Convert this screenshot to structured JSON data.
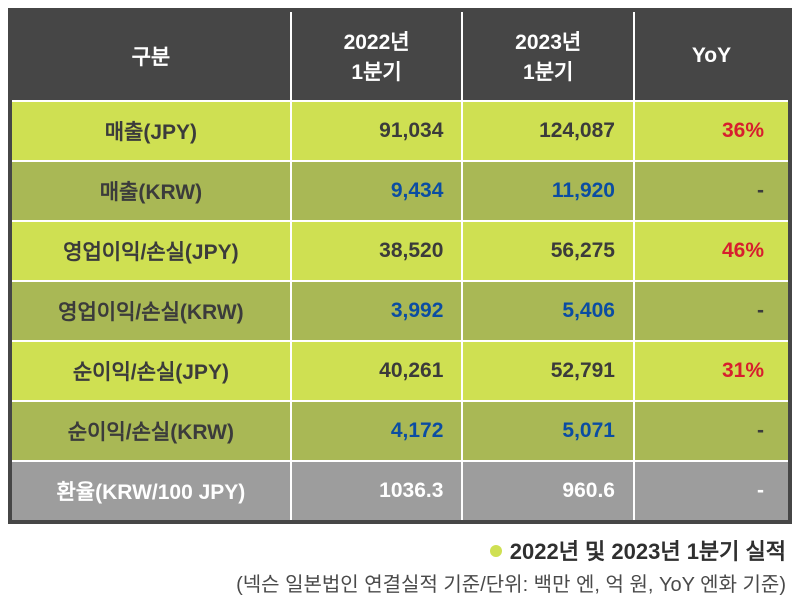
{
  "colors": {
    "header_bg": "#464646",
    "header_text": "#ffffff",
    "row_lime": "#cfe052",
    "row_olive": "#a9b855",
    "row_gray": "#9d9d9d",
    "text_dark": "#3b3b3b",
    "text_blue": "#0b4da2",
    "text_red": "#d71f2e",
    "border": "#ffffff",
    "bullet": "#cfe052"
  },
  "typography": {
    "header_fontsize_pt": 16,
    "cell_fontsize_pt": 16,
    "caption_title_fontsize_pt": 17,
    "caption_sub_fontsize_pt": 15,
    "font_weight": 700
  },
  "table": {
    "type": "table",
    "columns": [
      {
        "label": "구분",
        "align": "center",
        "width_pct": 36
      },
      {
        "label": "2022년\n1분기",
        "align": "right",
        "width_pct": 22
      },
      {
        "label": "2023년\n1분기",
        "align": "right",
        "width_pct": 22
      },
      {
        "label": "YoY",
        "align": "right",
        "width_pct": 20
      }
    ],
    "rows": [
      {
        "label": "매출(JPY)",
        "v2022": "91,034",
        "v2023": "124,087",
        "yoy": "36%",
        "row_bg": "lime",
        "value_color": "dark",
        "yoy_color": "red"
      },
      {
        "label": "매출(KRW)",
        "v2022": "9,434",
        "v2023": "11,920",
        "yoy": "-",
        "row_bg": "olive",
        "value_color": "blue",
        "yoy_color": "dark"
      },
      {
        "label": "영업이익/손실(JPY)",
        "v2022": "38,520",
        "v2023": "56,275",
        "yoy": "46%",
        "row_bg": "lime",
        "value_color": "dark",
        "yoy_color": "red"
      },
      {
        "label": "영업이익/손실(KRW)",
        "v2022": "3,992",
        "v2023": "5,406",
        "yoy": "-",
        "row_bg": "olive",
        "value_color": "blue",
        "yoy_color": "dark"
      },
      {
        "label": "순이익/손실(JPY)",
        "v2022": "40,261",
        "v2023": "52,791",
        "yoy": "31%",
        "row_bg": "lime",
        "value_color": "dark",
        "yoy_color": "red"
      },
      {
        "label": "순이익/손실(KRW)",
        "v2022": "4,172",
        "v2023": "5,071",
        "yoy": "-",
        "row_bg": "olive",
        "value_color": "blue",
        "yoy_color": "dark"
      },
      {
        "label": "환율(KRW/100 JPY)",
        "v2022": "1036.3",
        "v2023": "960.6",
        "yoy": "-",
        "row_bg": "gray",
        "value_color": "white",
        "yoy_color": "white",
        "label_color": "white"
      }
    ]
  },
  "caption": {
    "title": "2022년 및 2023년 1분기 실적",
    "subtitle": "(넥슨 일본법인 연결실적 기준/단위: 백만 엔, 억 원, YoY 엔화 기준)"
  }
}
